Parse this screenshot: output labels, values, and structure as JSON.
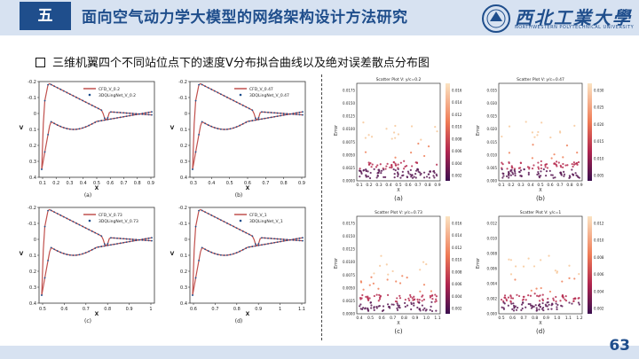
{
  "header": {
    "section_label": "五",
    "title": "面向空气动力学大模型的网络架构设计方法研究",
    "logo_text": "西北工業大學",
    "logo_subtext": "NORTHWESTERN POLYTECHNICAL UNIVERSITY"
  },
  "subtitle": "三维机翼四个不同站位点下的速度V分布拟合曲线以及绝对误差散点分布图",
  "page_number": "63",
  "colors": {
    "accent": "#1f4e8c",
    "band": "#d7e2f1",
    "cfd": "#c0504d",
    "pred": "#1f4e8c"
  },
  "line_charts": [
    {
      "panel": "(a)",
      "legend": [
        "CFD_V_0.2",
        "3DQLingNet_V_0.2"
      ],
      "xlabel": "X",
      "ylabel": "V",
      "xticks": [
        "0.1",
        "0.2",
        "0.3",
        "0.4",
        "0.5",
        "0.6",
        "0.7",
        "0.8",
        "0.9"
      ],
      "yticks": [
        "-0.2",
        "-0.1",
        "0",
        "0.1",
        "0.2",
        "0.3",
        "0.4"
      ]
    },
    {
      "panel": "(b)",
      "legend": [
        "CFD_V_0.47",
        "3DQLingNet_V_0.47"
      ],
      "xlabel": "X",
      "ylabel": "V",
      "xticks": [
        "0.3",
        "0.4",
        "0.5",
        "0.6",
        "0.7",
        "0.8",
        "0.9"
      ],
      "yticks": [
        "-0.2",
        "-0.1",
        "0",
        "0.1",
        "0.2",
        "0.3",
        "0.4"
      ]
    },
    {
      "panel": "(c)",
      "legend": [
        "CFD_V_0.73",
        "3DQLingNet_V_0.73"
      ],
      "xlabel": "X",
      "ylabel": "V",
      "xticks": [
        "0.5",
        "0.6",
        "0.7",
        "0.8",
        "0.9",
        "1"
      ],
      "yticks": [
        "-0.2",
        "-0.1",
        "0",
        "0.1",
        "0.2",
        "0.3",
        "0.4"
      ]
    },
    {
      "panel": "(d)",
      "legend": [
        "CFD_V_1",
        "3DQLingNet_V_1"
      ],
      "xlabel": "X",
      "ylabel": "V",
      "xticks": [
        "0.6",
        "0.7",
        "0.8",
        "0.9",
        "1",
        "1.1"
      ],
      "yticks": [
        "-0.2",
        "-0.1",
        "0",
        "0.1",
        "0.2",
        "0.3",
        "0.4"
      ]
    }
  ],
  "scatter_charts": [
    {
      "panel": "(a)",
      "title": "Scatter Plot V: y/c=0.2",
      "xlabel": "X",
      "ylabel": "Error",
      "xticks": [
        "0.1",
        "0.2",
        "0.3",
        "0.4",
        "0.5",
        "0.6",
        "0.7",
        "0.8",
        "0.9"
      ],
      "yticks": [
        "0.0000",
        "0.0025",
        "0.0050",
        "0.0075",
        "0.0100",
        "0.0125",
        "0.0150",
        "0.0175"
      ],
      "cbar": [
        "0.002",
        "0.004",
        "0.006",
        "0.008",
        "0.010",
        "0.012",
        "0.014",
        "0.016"
      ]
    },
    {
      "panel": "(b)",
      "title": "Scatter Plot V: y/c=0.47",
      "xlabel": "X",
      "ylabel": "Error",
      "xticks": [
        "0.1",
        "0.2",
        "0.3",
        "0.4",
        "0.5",
        "0.6",
        "0.7",
        "0.8",
        "0.9"
      ],
      "yticks": [
        "0.000",
        "0.005",
        "0.010",
        "0.015",
        "0.020",
        "0.025",
        "0.030",
        "0.035"
      ],
      "cbar": [
        "0.005",
        "0.010",
        "0.015",
        "0.020",
        "0.025",
        "0.030"
      ]
    },
    {
      "panel": "(c)",
      "title": "Scatter Plot V: y/c=0.73",
      "xlabel": "X",
      "ylabel": "Error",
      "xticks": [
        "0.4",
        "0.5",
        "0.6",
        "0.7",
        "0.8",
        "0.9",
        "1.0",
        "1.1"
      ],
      "yticks": [
        "0.0000",
        "0.0025",
        "0.0050",
        "0.0075",
        "0.0100",
        "0.0125",
        "0.0150",
        "0.0175"
      ],
      "cbar": [
        "0.002",
        "0.004",
        "0.006",
        "0.008",
        "0.010",
        "0.012",
        "0.014",
        "0.016"
      ]
    },
    {
      "panel": "(d)",
      "title": "Scatter Plot V: y/c=1",
      "xlabel": "X",
      "ylabel": "Error",
      "xticks": [
        "0.5",
        "0.6",
        "0.7",
        "0.8",
        "0.9",
        "1.0",
        "1.1",
        "1.2"
      ],
      "yticks": [
        "0.000",
        "0.002",
        "0.004",
        "0.006",
        "0.008",
        "0.010",
        "0.012"
      ],
      "cbar": [
        "0.002",
        "0.004",
        "0.006",
        "0.008",
        "0.010",
        "0.012"
      ]
    }
  ]
}
